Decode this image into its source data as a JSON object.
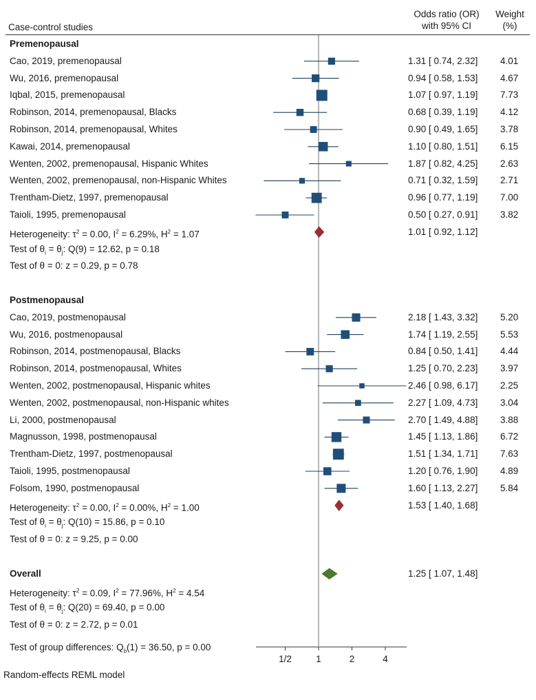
{
  "chart_data": {
    "type": "forest",
    "header": {
      "left": "Case-control studies",
      "or_line1": "Odds ratio (OR)",
      "or_line2": "with 95% CI",
      "weight_line1": "Weight",
      "weight_line2": "(%)"
    },
    "groups": [
      {
        "name": "Premenopausal",
        "studies": [
          {
            "label": "Cao, 2019, premenopausal",
            "or": 1.31,
            "lo": 0.74,
            "hi": 2.32,
            "ci_text": "1.31 [ 0.74,  2.32]",
            "weight": "4.01"
          },
          {
            "label": "Wu, 2016, premenopausal",
            "or": 0.94,
            "lo": 0.58,
            "hi": 1.53,
            "ci_text": "0.94 [ 0.58,  1.53]",
            "weight": "4.67"
          },
          {
            "label": "Iqbal, 2015, premenopausal",
            "or": 1.07,
            "lo": 0.97,
            "hi": 1.19,
            "ci_text": "1.07 [ 0.97,  1.19]",
            "weight": "7.73"
          },
          {
            "label": "Robinson, 2014, premenopausal, Blacks",
            "or": 0.68,
            "lo": 0.39,
            "hi": 1.19,
            "ci_text": "0.68 [ 0.39,  1.19]",
            "weight": "4.12"
          },
          {
            "label": "Robinson, 2014, premenopausal, Whites",
            "or": 0.9,
            "lo": 0.49,
            "hi": 1.65,
            "ci_text": "0.90 [ 0.49,  1.65]",
            "weight": "3.78"
          },
          {
            "label": "Kawai, 2014, premenopausal",
            "or": 1.1,
            "lo": 0.8,
            "hi": 1.51,
            "ci_text": "1.10 [ 0.80,  1.51]",
            "weight": "6.15"
          },
          {
            "label": "Wenten, 2002, premenopausal, Hispanic Whites",
            "or": 1.87,
            "lo": 0.82,
            "hi": 4.25,
            "ci_text": "1.87 [ 0.82,  4.25]",
            "weight": "2.63"
          },
          {
            "label": "Wenten, 2002, premenopausal, non-Hispanic Whites",
            "or": 0.71,
            "lo": 0.32,
            "hi": 1.59,
            "ci_text": "0.71 [ 0.32,  1.59]",
            "weight": "2.71"
          },
          {
            "label": "Trentham-Dietz, 1997, premenopausal",
            "or": 0.96,
            "lo": 0.77,
            "hi": 1.19,
            "ci_text": "0.96 [ 0.77,  1.19]",
            "weight": "7.00"
          },
          {
            "label": "Taioli, 1995, premenopausal",
            "or": 0.5,
            "lo": 0.27,
            "hi": 0.91,
            "ci_text": "0.50 [ 0.27,  0.91]",
            "weight": "3.82"
          }
        ],
        "pooled": {
          "or": 1.01,
          "lo": 0.92,
          "hi": 1.12,
          "ci_text": "1.01 [ 0.92,  1.12]"
        },
        "heterogeneity": {
          "prefix": "Heterogeneity: τ",
          "tau2": " = 0.00, I",
          "i2": " = 6.29%, H",
          "h2": " = 1.07"
        },
        "test_homog": {
          "prefix": "Test of θ",
          "sub": "i",
          "mid": " = θ",
          "sub2": "j",
          "rest": ": Q(9) = 12.62, p = 0.18"
        },
        "test_zero": "Test of θ = 0: z = 0.29, p = 0.78"
      },
      {
        "name": "Postmenopausal",
        "studies": [
          {
            "label": "Cao, 2019, postmenopausal",
            "or": 2.18,
            "lo": 1.43,
            "hi": 3.32,
            "ci_text": "2.18 [ 1.43,  3.32]",
            "weight": "5.20"
          },
          {
            "label": "Wu, 2016, postmenopausal",
            "or": 1.74,
            "lo": 1.19,
            "hi": 2.55,
            "ci_text": "1.74 [ 1.19,  2.55]",
            "weight": "5.53"
          },
          {
            "label": "Robinson, 2014, postmenopausal, Blacks",
            "or": 0.84,
            "lo": 0.5,
            "hi": 1.41,
            "ci_text": "0.84 [ 0.50,  1.41]",
            "weight": "4.44"
          },
          {
            "label": "Robinson, 2014, postmenopausal, Whites",
            "or": 1.25,
            "lo": 0.7,
            "hi": 2.23,
            "ci_text": "1.25 [ 0.70,  2.23]",
            "weight": "3.97"
          },
          {
            "label": "Wenten, 2002, postmenopausal, Hispanic whites",
            "or": 2.46,
            "lo": 0.98,
            "hi": 6.17,
            "ci_text": "2.46 [ 0.98,  6.17]",
            "weight": "2.25"
          },
          {
            "label": "Wenten, 2002, postmenopausal, non-Hispanic whites",
            "or": 2.27,
            "lo": 1.09,
            "hi": 4.73,
            "ci_text": "2.27 [ 1.09,  4.73]",
            "weight": "3.04"
          },
          {
            "label": "Li, 2000, postmenopausal",
            "or": 2.7,
            "lo": 1.49,
            "hi": 4.88,
            "ci_text": "2.70 [ 1.49,  4.88]",
            "weight": "3.88"
          },
          {
            "label": "Magnusson, 1998, postmenopausal",
            "or": 1.45,
            "lo": 1.13,
            "hi": 1.86,
            "ci_text": "1.45 [ 1.13,  1.86]",
            "weight": "6.72"
          },
          {
            "label": "Trentham-Dietz, 1997, postmenopausal",
            "or": 1.51,
            "lo": 1.34,
            "hi": 1.71,
            "ci_text": "1.51 [ 1.34,  1.71]",
            "weight": "7.63"
          },
          {
            "label": "Taioli, 1995, postmenopausal",
            "or": 1.2,
            "lo": 0.76,
            "hi": 1.9,
            "ci_text": "1.20 [ 0.76,  1.90]",
            "weight": "4.89"
          },
          {
            "label": "Folsom, 1990, postmenopausal",
            "or": 1.6,
            "lo": 1.13,
            "hi": 2.27,
            "ci_text": "1.60 [ 1.13,  2.27]",
            "weight": "5.84"
          }
        ],
        "pooled": {
          "or": 1.53,
          "lo": 1.4,
          "hi": 1.68,
          "ci_text": "1.53 [ 1.40,  1.68]"
        },
        "heterogeneity": {
          "prefix": "Heterogeneity: τ",
          "tau2": " = 0.00, I",
          "i2": " = 0.00%, H",
          "h2": " = 1.00"
        },
        "test_homog": {
          "prefix": "Test of θ",
          "sub": "i",
          "mid": " = θ",
          "sub2": "j",
          "rest": ": Q(10) = 15.86, p = 0.10"
        },
        "test_zero": "Test of θ = 0: z = 9.25, p = 0.00"
      }
    ],
    "overall": {
      "name": "Overall",
      "or": 1.25,
      "lo": 1.07,
      "hi": 1.48,
      "ci_text": "1.25 [ 1.07,  1.48]",
      "heterogeneity": {
        "prefix": "Heterogeneity: τ",
        "tau2": " = 0.09, I",
        "i2": " = 77.96%, H",
        "h2": " = 4.54"
      },
      "test_homog": {
        "prefix": "Test of θ",
        "sub": "i",
        "mid": " = θ",
        "sub2": "j",
        "rest": ": Q(20) = 69.40, p = 0.00"
      },
      "test_zero": "Test of θ = 0: z = 2.72, p = 0.01",
      "group_diff": {
        "prefix": "Test of group differences: Q",
        "sub": "b",
        "rest": "(1) = 36.50, p = 0.00"
      }
    },
    "x_axis": {
      "scale": "log",
      "ticks": [
        0.5,
        1,
        2,
        4
      ],
      "tick_labels": [
        "1/2",
        "1",
        "2",
        "4"
      ],
      "range": [
        0.25,
        6.2
      ]
    },
    "footnote": "Random-effects REML model",
    "colors": {
      "square": "#1f4e79",
      "ci_line": "#1f3f5f",
      "subgroup_diamond": "#9b2d30",
      "overall_diamond": "#4a7a2c",
      "null_line": "#888888"
    }
  }
}
